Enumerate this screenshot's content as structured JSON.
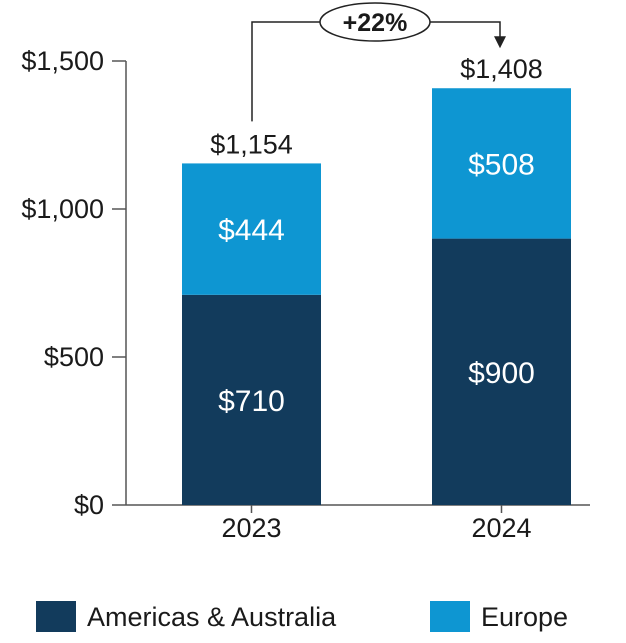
{
  "chart_data": {
    "type": "bar",
    "stacked": true,
    "title": "",
    "xlabel": "",
    "ylabel": "",
    "categories": [
      "2023",
      "2024"
    ],
    "series": [
      {
        "name": "Americas & Australia",
        "values": [
          710,
          900
        ],
        "value_labels": [
          "$710",
          "$900"
        ],
        "color": "#123b5c"
      },
      {
        "name": "Europe",
        "values": [
          444,
          508
        ],
        "value_labels": [
          "$444",
          "$508"
        ],
        "color": "#0e96d2"
      }
    ],
    "totals": [
      1154,
      1408
    ],
    "total_labels": [
      "$1,154",
      "$1,408"
    ],
    "yticks": [
      0,
      500,
      1000,
      1500
    ],
    "ytick_labels": [
      "$0",
      "$500",
      "$1,000",
      "$1,500"
    ],
    "ylim": [
      0,
      1500
    ],
    "grid": false,
    "legend_position": "bottom",
    "annotation": {
      "text": "+22%",
      "from_category": "2023",
      "to_category": "2024"
    }
  }
}
